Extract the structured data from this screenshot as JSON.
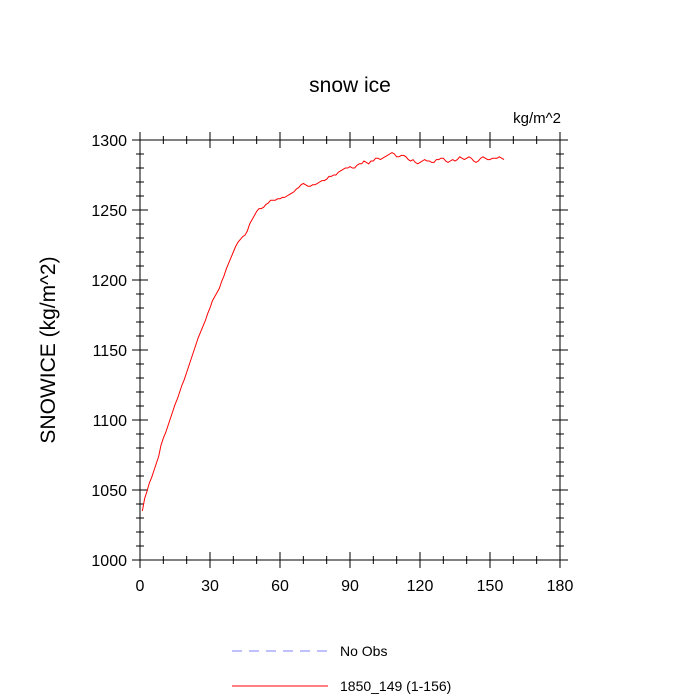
{
  "chart_data": {
    "type": "line",
    "title": "snow ice",
    "units_label": "kg/m^2",
    "ylabel": "SNOWICE  (kg/m^2)",
    "xlabel": "",
    "xlim": [
      0,
      180
    ],
    "ylim": [
      1000,
      1300
    ],
    "xticks": [
      0,
      30,
      60,
      90,
      120,
      150,
      180
    ],
    "yticks": [
      1000,
      1050,
      1100,
      1150,
      1200,
      1250,
      1300
    ],
    "xtick_labels": [
      "0",
      "30",
      "60",
      "90",
      "120",
      "150",
      "180"
    ],
    "ytick_labels": [
      "1000",
      "1050",
      "1100",
      "1150",
      "1200",
      "1250",
      "1300"
    ],
    "legend_position": "bottom-center",
    "series": [
      {
        "name": "No Obs",
        "color": "#8080ff",
        "dash": "dashed",
        "x": [],
        "y": []
      },
      {
        "name": "1850_149 (1-156)",
        "color": "#ff0000",
        "dash": "solid",
        "x": [
          1,
          2,
          3,
          4,
          5,
          6,
          7,
          8,
          9,
          10,
          11,
          12,
          13,
          14,
          15,
          16,
          17,
          18,
          19,
          20,
          21,
          22,
          23,
          24,
          25,
          26,
          27,
          28,
          29,
          30,
          31,
          32,
          33,
          34,
          35,
          36,
          37,
          38,
          39,
          40,
          41,
          42,
          43,
          44,
          45,
          46,
          47,
          48,
          49,
          50,
          51,
          52,
          53,
          54,
          55,
          56,
          57,
          58,
          59,
          60,
          61,
          62,
          63,
          64,
          65,
          66,
          67,
          68,
          69,
          70,
          71,
          72,
          73,
          74,
          75,
          76,
          77,
          78,
          79,
          80,
          81,
          82,
          83,
          84,
          85,
          86,
          87,
          88,
          89,
          90,
          91,
          92,
          93,
          94,
          95,
          96,
          97,
          98,
          99,
          100,
          101,
          102,
          103,
          104,
          105,
          106,
          107,
          108,
          109,
          110,
          111,
          112,
          113,
          114,
          115,
          116,
          117,
          118,
          119,
          120,
          121,
          122,
          123,
          124,
          125,
          126,
          127,
          128,
          129,
          130,
          131,
          132,
          133,
          134,
          135,
          136,
          137,
          138,
          139,
          140,
          141,
          142,
          143,
          144,
          145,
          146,
          147,
          148,
          149,
          150,
          151,
          152,
          153,
          154,
          155,
          156
        ],
        "y": [
          1035,
          1044,
          1049,
          1055,
          1059,
          1064,
          1069,
          1074,
          1082,
          1087,
          1091,
          1096,
          1101,
          1106,
          1111,
          1115,
          1120,
          1125,
          1129,
          1134,
          1139,
          1144,
          1149,
          1154,
          1159,
          1163,
          1167,
          1171,
          1176,
          1180,
          1185,
          1188,
          1191,
          1194,
          1199,
          1203,
          1208,
          1212,
          1216,
          1220,
          1224,
          1227,
          1229,
          1231,
          1232,
          1235,
          1240,
          1243,
          1246,
          1249,
          1251,
          1251,
          1252,
          1254,
          1255,
          1257,
          1257,
          1257,
          1258,
          1258,
          1259,
          1259,
          1260,
          1261,
          1262,
          1263,
          1265,
          1266,
          1268,
          1269,
          1268,
          1267,
          1267,
          1268,
          1268,
          1269,
          1270,
          1271,
          1271,
          1272,
          1274,
          1274,
          1275,
          1275,
          1277,
          1278,
          1279,
          1280,
          1280,
          1281,
          1280,
          1280,
          1282,
          1283,
          1283,
          1285,
          1284,
          1283,
          1285,
          1285,
          1287,
          1287,
          1286,
          1287,
          1288,
          1289,
          1290,
          1291,
          1290,
          1288,
          1288,
          1289,
          1289,
          1288,
          1286,
          1285,
          1286,
          1284,
          1283,
          1284,
          1285,
          1286,
          1285,
          1285,
          1284,
          1284,
          1286,
          1286,
          1287,
          1287,
          1285,
          1284,
          1285,
          1286,
          1285,
          1286,
          1288,
          1287,
          1286,
          1287,
          1288,
          1287,
          1285,
          1284,
          1285,
          1287,
          1288,
          1287,
          1286,
          1286,
          1287,
          1287,
          1287,
          1288,
          1287,
          1286
        ]
      }
    ]
  }
}
